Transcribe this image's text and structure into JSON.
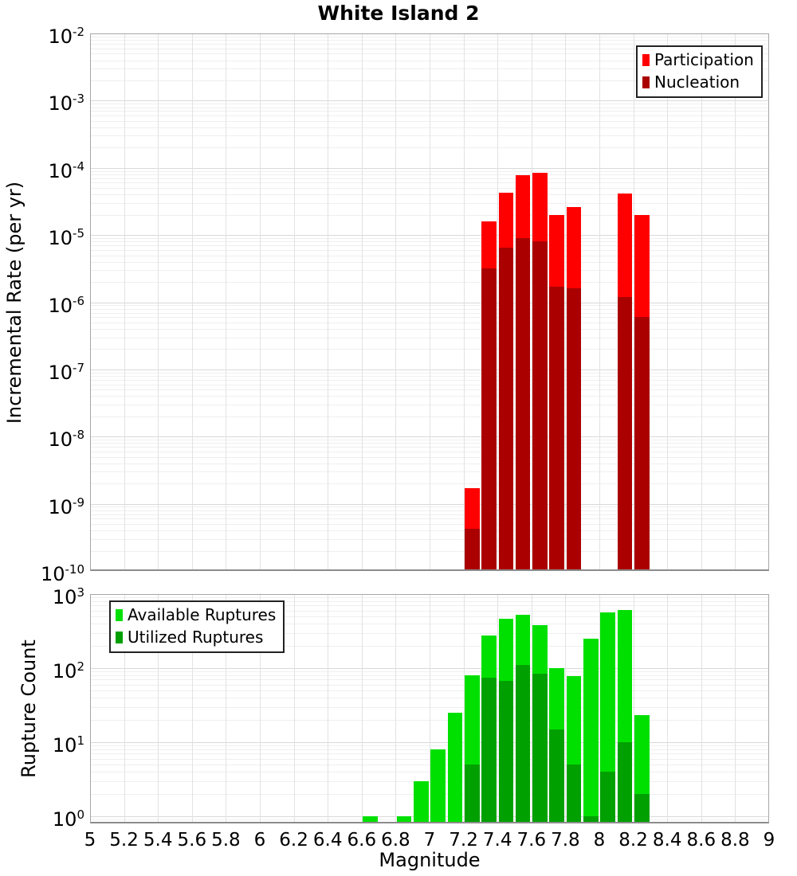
{
  "title": "White Island 2",
  "colors": {
    "participation": "#ff0000",
    "nucleation": "#aa0000",
    "available": "#00e000",
    "utilized": "#00a000",
    "grid_major": "#d9d9d9",
    "grid_minor": "#efefef",
    "grid_vertical": "#e2e2e2",
    "frame": "#a6a6a6"
  },
  "chart_data": [
    {
      "type": "bar",
      "title": "White Island 2",
      "xlabel": "",
      "ylabel": "Incremental Rate (per yr)",
      "y_scale": "log",
      "ylim": [
        1e-10,
        0.01
      ],
      "xlim": [
        5,
        9
      ],
      "bin_width": 0.1,
      "grid": true,
      "legend_position": "top-right",
      "x_ticks": [
        5,
        5.2,
        5.4,
        5.6,
        5.8,
        6,
        6.2,
        6.4,
        6.6,
        6.8,
        7,
        7.2,
        7.4,
        7.6,
        7.8,
        8,
        8.2,
        8.4,
        8.6,
        8.8,
        9
      ],
      "y_tick_exponents": [
        -2,
        -3,
        -4,
        -5,
        -6,
        -7,
        -8,
        -9,
        -10
      ],
      "series": [
        {
          "name": "Participation",
          "color": "#ff0000",
          "x": [
            7.25,
            7.35,
            7.45,
            7.55,
            7.65,
            7.75,
            7.85,
            8.15,
            8.25
          ],
          "values": [
            1.7e-09,
            1.6e-05,
            4.3e-05,
            7.7e-05,
            8.5e-05,
            2e-05,
            2.6e-05,
            4.2e-05,
            2e-05
          ]
        },
        {
          "name": "Nucleation",
          "color": "#aa0000",
          "x": [
            7.25,
            7.35,
            7.45,
            7.55,
            7.65,
            7.75,
            7.85,
            8.15,
            8.25
          ],
          "values": [
            4.2e-10,
            3.2e-06,
            6.4e-06,
            9e-06,
            8e-06,
            1.7e-06,
            1.6e-06,
            1.2e-06,
            6e-07
          ]
        }
      ]
    },
    {
      "type": "bar",
      "title": "",
      "xlabel": "Magnitude",
      "ylabel": "Rupture Count",
      "y_scale": "log",
      "ylim": [
        0.8,
        1000
      ],
      "xlim": [
        5,
        9
      ],
      "bin_width": 0.1,
      "grid": true,
      "legend_position": "top-left",
      "x_ticks": [
        5,
        5.2,
        5.4,
        5.6,
        5.8,
        6,
        6.2,
        6.4,
        6.6,
        6.8,
        7,
        7.2,
        7.4,
        7.6,
        7.8,
        8,
        8.2,
        8.4,
        8.6,
        8.8,
        9
      ],
      "y_tick_exponents": [
        3,
        2,
        1,
        0
      ],
      "series": [
        {
          "name": "Available Ruptures",
          "color": "#00e000",
          "x": [
            6.65,
            6.85,
            6.95,
            7.05,
            7.15,
            7.25,
            7.35,
            7.45,
            7.55,
            7.65,
            7.75,
            7.85,
            7.95,
            8.05,
            8.15,
            8.25
          ],
          "values": [
            1,
            1,
            3,
            8,
            25,
            80,
            275,
            460,
            530,
            380,
            100,
            78,
            250,
            560,
            610,
            23
          ]
        },
        {
          "name": "Utilized Ruptures",
          "color": "#00a000",
          "x": [
            7.25,
            7.35,
            7.45,
            7.55,
            7.65,
            7.75,
            7.85,
            7.95,
            8.05,
            8.15,
            8.25
          ],
          "values": [
            5,
            75,
            68,
            110,
            85,
            15,
            5,
            1,
            4,
            10,
            2
          ]
        }
      ]
    }
  ]
}
